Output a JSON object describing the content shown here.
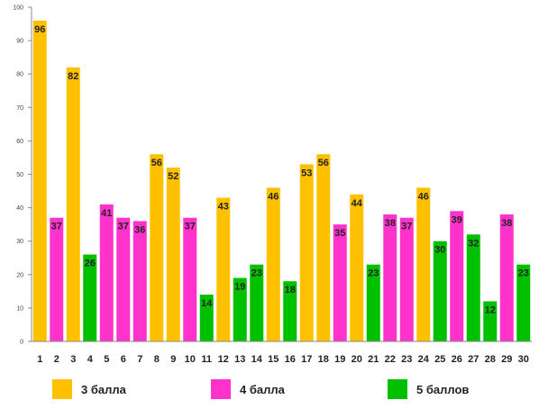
{
  "chart_data": {
    "type": "bar",
    "title": "",
    "xlabel": "",
    "ylabel": "",
    "ylim": [
      0,
      100
    ],
    "y_ticks": [
      0,
      10,
      20,
      30,
      40,
      50,
      60,
      70,
      80,
      90,
      100
    ],
    "grid": false,
    "legend_position": "bottom",
    "categories": [
      "1",
      "2",
      "3",
      "4",
      "5",
      "6",
      "7",
      "8",
      "9",
      "10",
      "11",
      "12",
      "13",
      "14",
      "15",
      "16",
      "17",
      "18",
      "19",
      "20",
      "21",
      "22",
      "23",
      "24",
      "25",
      "26",
      "27",
      "28",
      "29",
      "30"
    ],
    "values": [
      96,
      37,
      82,
      26,
      41,
      37,
      36,
      56,
      52,
      37,
      14,
      43,
      19,
      23,
      46,
      18,
      53,
      56,
      35,
      44,
      23,
      38,
      37,
      46,
      30,
      39,
      32,
      12,
      38,
      23
    ],
    "value_labels": [
      "96",
      "37",
      "82",
      "26",
      "41",
      "37",
      "36",
      "56",
      "52",
      "37",
      "14",
      "43",
      "19",
      "23",
      "46",
      "18",
      "53",
      "56",
      "35",
      "44",
      "23",
      "38",
      "37",
      "46",
      "30",
      "39",
      "32",
      "12",
      "38",
      "23"
    ],
    "point_series": [
      0,
      1,
      0,
      2,
      1,
      1,
      1,
      0,
      0,
      1,
      2,
      0,
      2,
      2,
      0,
      2,
      0,
      0,
      1,
      0,
      2,
      1,
      1,
      0,
      2,
      1,
      2,
      2,
      1,
      2
    ],
    "series": [
      {
        "name": "3 балла",
        "color": "#FFC000"
      },
      {
        "name": "4 балла",
        "color": "#FF33CC"
      },
      {
        "name": "5 баллов",
        "color": "#00C000"
      }
    ]
  }
}
